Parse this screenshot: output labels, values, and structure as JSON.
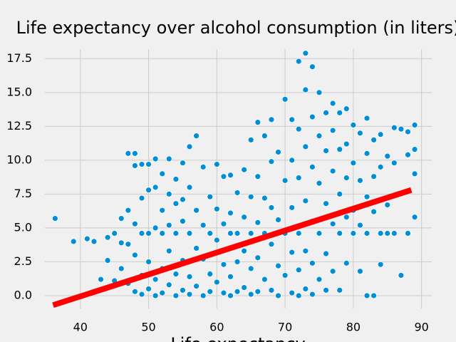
{
  "chart_data": {
    "type": "scatter",
    "title": "Life expectancy over alcohol consumption (in liters)",
    "x_label": "Life expectancy",
    "color": "#008fd5",
    "x": [
      36.3,
      39,
      41,
      42,
      43,
      44,
      44,
      45,
      45,
      46,
      46,
      46,
      47,
      47,
      47,
      47,
      48,
      48,
      48,
      48,
      48,
      49,
      49,
      49,
      49,
      49,
      50,
      50,
      50,
      50,
      50,
      51,
      51,
      51,
      51,
      51,
      52,
      52,
      52,
      52,
      52,
      53,
      53,
      53,
      53,
      53,
      54,
      54,
      54,
      54,
      54,
      55,
      55,
      55,
      55,
      55,
      56,
      56,
      56,
      56,
      56,
      57,
      57,
      57,
      57,
      58,
      58,
      58,
      58,
      59,
      59,
      59,
      59,
      60,
      60,
      60,
      60,
      61,
      61,
      61,
      61,
      62,
      62,
      62,
      62,
      62,
      63,
      63,
      63,
      63,
      64,
      64,
      64,
      64,
      65,
      65,
      65,
      65,
      65,
      66,
      66,
      66,
      66,
      66,
      67,
      67,
      67,
      67,
      68,
      68,
      68,
      68,
      68,
      69,
      69,
      69,
      69,
      70,
      70,
      70,
      70,
      71,
      71,
      71,
      71,
      71,
      72,
      72,
      72,
      72,
      72,
      72,
      73,
      73,
      73,
      73,
      73,
      73,
      74,
      74,
      74,
      74,
      74,
      74,
      75,
      75,
      75,
      75,
      75,
      76,
      76,
      76,
      76,
      76,
      77,
      77,
      77,
      77,
      77,
      78,
      78,
      78,
      78,
      78,
      79,
      79,
      79,
      79,
      79,
      80,
      80,
      80,
      80,
      81,
      81,
      81,
      81,
      82,
      82,
      82,
      82,
      82,
      83,
      83,
      83,
      83,
      84,
      84,
      84,
      84,
      85,
      85,
      85,
      86,
      86,
      86,
      87,
      87,
      88,
      88,
      88,
      89,
      89,
      89,
      89
    ],
    "values": [
      5.7,
      4,
      4.2,
      4,
      1.2,
      2.6,
      4.3,
      4.6,
      1.1,
      5.7,
      3.9,
      2,
      10.5,
      6.3,
      3.8,
      0.9,
      10.5,
      9.6,
      5.3,
      3,
      0.3,
      9.7,
      7.2,
      4.6,
      1.5,
      0.1,
      9.7,
      7.8,
      4.6,
      2.5,
      0.5,
      10.1,
      8,
      5,
      1.2,
      0,
      9,
      6.3,
      4.6,
      2,
      0.2,
      10.1,
      7.5,
      5.2,
      3.3,
      0.8,
      8.6,
      6.8,
      4.6,
      1.6,
      0,
      9.8,
      7.1,
      5.5,
      2.6,
      0.4,
      11,
      8,
      4.6,
      1.4,
      0.1,
      11.8,
      6.3,
      3.5,
      0.7,
      9.5,
      5.2,
      2.7,
      0,
      7.3,
      4.6,
      1.6,
      0.3,
      9.7,
      6.4,
      4.1,
      1,
      8.8,
      5.3,
      2.3,
      0.2,
      8.9,
      6.1,
      4.6,
      1.4,
      0,
      7.6,
      4.6,
      2.5,
      0.3,
      9.3,
      5.8,
      3.3,
      0.6,
      11.5,
      7.3,
      4.6,
      2,
      0.1,
      12.8,
      8.8,
      5.4,
      2.8,
      0.3,
      11.8,
      7.2,
      4.6,
      1.2,
      13,
      9.9,
      6.5,
      3.8,
      0.4,
      10.6,
      5.6,
      2.2,
      0,
      14.5,
      8.5,
      4.6,
      1.5,
      13,
      10,
      6.5,
      3.2,
      0.2,
      17.3,
      12.3,
      8.7,
      4.6,
      1.9,
      0,
      17.9,
      15.2,
      11,
      7,
      3.3,
      0.5,
      16.9,
      13.2,
      9.5,
      5.5,
      2.4,
      0.1,
      15,
      11.8,
      8.3,
      4.6,
      1.2,
      13.5,
      10.7,
      6.8,
      3.1,
      0.4,
      14.2,
      12.2,
      9.2,
      5.3,
      1.8,
      13.5,
      10.8,
      7.5,
      4.6,
      0.4,
      13.8,
      11.2,
      8.7,
      5.8,
      2.4,
      12.6,
      9.8,
      6.3,
      4.6,
      12,
      8.5,
      5.2,
      1.8,
      13.1,
      10.5,
      7.3,
      4.6,
      0,
      11.5,
      8.8,
      6.2,
      0,
      11.9,
      9.5,
      4.6,
      2.3,
      10.3,
      6.7,
      4.6,
      12.4,
      9.8,
      4.6,
      12.3,
      1.5,
      12.1,
      10.4,
      4.6,
      12.6,
      10.8,
      9,
      5.8
    ],
    "trend": {
      "x": [
        36,
        88.5
      ],
      "values": [
        -0.7,
        7.8
      ],
      "color": "#ff0000"
    },
    "xlim": [
      34.8,
      91.5
    ],
    "ylim": [
      -0.95,
      18.2
    ],
    "xticks": [
      40,
      50,
      60,
      70,
      80,
      90
    ],
    "yticks": [
      {
        "value": 0,
        "label": "0.0"
      },
      {
        "value": 2.5,
        "label": "2.5"
      },
      {
        "value": 5,
        "label": "5.0"
      },
      {
        "value": 7.5,
        "label": "7.5"
      },
      {
        "value": 10,
        "label": "10.0"
      },
      {
        "value": 12.5,
        "label": "12.5"
      },
      {
        "value": 15,
        "label": "15.0"
      },
      {
        "value": 17.5,
        "label": "17.5"
      }
    ],
    "grid": true
  }
}
